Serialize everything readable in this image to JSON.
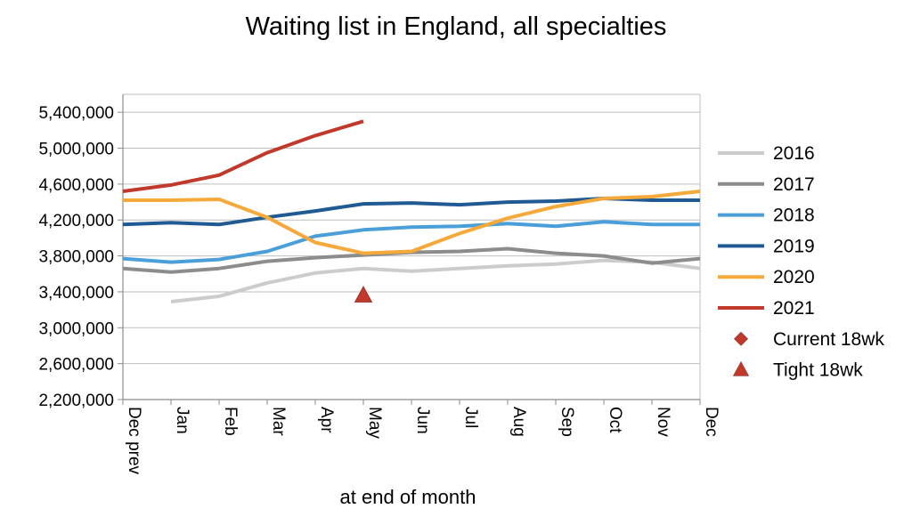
{
  "chart_data": {
    "type": "line",
    "title": "Waiting list in England, all specialties",
    "xlabel": "at end of month",
    "ylabel": "",
    "ylim": [
      2200000,
      5600000
    ],
    "y_ticks": [
      2200000,
      2600000,
      3000000,
      3400000,
      3800000,
      4200000,
      4600000,
      5000000,
      5400000
    ],
    "y_tick_labels": [
      "2,200,000",
      "2,600,000",
      "3,000,000",
      "3,400,000",
      "3,800,000",
      "4,200,000",
      "4,600,000",
      "5,000,000",
      "5,400,000"
    ],
    "categories": [
      "Dec prev",
      "Jan",
      "Feb",
      "Mar",
      "Apr",
      "May",
      "Jun",
      "Jul",
      "Aug",
      "Sep",
      "Oct",
      "Nov",
      "Dec"
    ],
    "grid": "horizontal",
    "legend_position": "right",
    "series": [
      {
        "name": "2016",
        "color": "#cccccc",
        "values": [
          null,
          3290000,
          3350000,
          3500000,
          3610000,
          3660000,
          3630000,
          3660000,
          3690000,
          3710000,
          3750000,
          3730000,
          3660000
        ]
      },
      {
        "name": "2017",
        "color": "#8c8c8c",
        "values": [
          3660000,
          3620000,
          3660000,
          3740000,
          3780000,
          3810000,
          3840000,
          3850000,
          3880000,
          3830000,
          3800000,
          3720000,
          3770000
        ]
      },
      {
        "name": "2018",
        "color": "#4a9fd8",
        "values": [
          3770000,
          3730000,
          3760000,
          3850000,
          4020000,
          4090000,
          4120000,
          4130000,
          4160000,
          4130000,
          4180000,
          4150000,
          4150000
        ]
      },
      {
        "name": "2019",
        "color": "#1f5a92",
        "values": [
          4150000,
          4170000,
          4150000,
          4230000,
          4300000,
          4380000,
          4390000,
          4370000,
          4400000,
          4410000,
          4440000,
          4420000,
          4420000
        ]
      },
      {
        "name": "2020",
        "color": "#f5a93a",
        "values": [
          4420000,
          4420000,
          4430000,
          4230000,
          3950000,
          3830000,
          3850000,
          4050000,
          4220000,
          4350000,
          4440000,
          4460000,
          4520000
        ]
      },
      {
        "name": "2021",
        "color": "#c0392b",
        "values": [
          4520000,
          4590000,
          4700000,
          4950000,
          5140000,
          5300000,
          null,
          null,
          null,
          null,
          null,
          null,
          null
        ]
      }
    ],
    "markers": [
      {
        "name": "Current 18wk",
        "shape": "diamond",
        "color": "#c0392b",
        "points": []
      },
      {
        "name": "Tight 18wk",
        "shape": "triangle",
        "color": "#c0392b",
        "points": [
          {
            "x": "May",
            "y": 3360000
          }
        ]
      }
    ],
    "axis_color": "#8c8c8c",
    "grid_color": "#bfbfbf"
  }
}
